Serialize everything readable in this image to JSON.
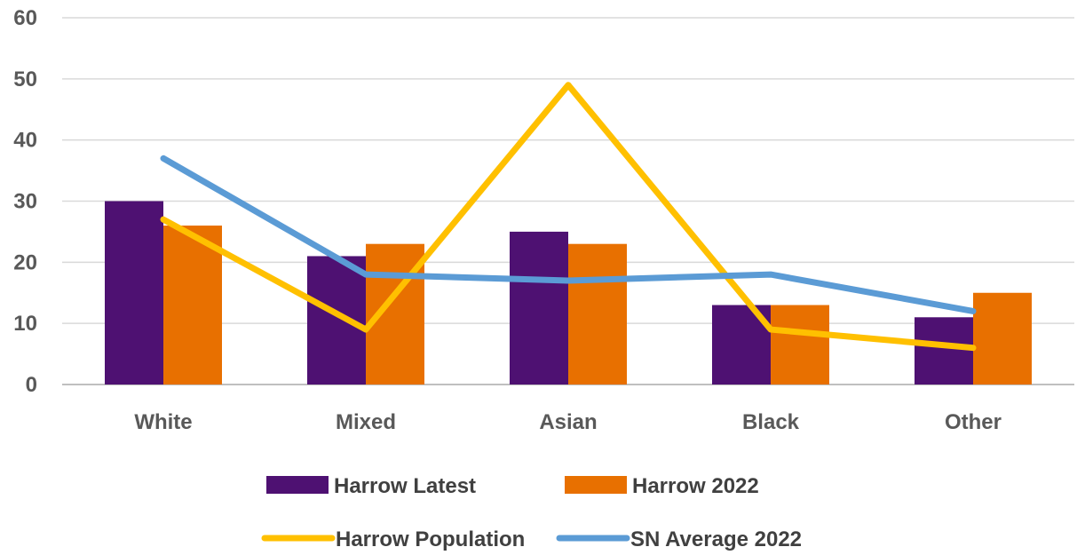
{
  "chart_data": {
    "type": "bar",
    "title": "",
    "xlabel": "",
    "ylabel": "",
    "categories": [
      "White",
      "Mixed",
      "Asian",
      "Black",
      "Other"
    ],
    "ylim": [
      0,
      60
    ],
    "yticks": [
      "0",
      "10",
      "20",
      "30",
      "40",
      "50",
      "60"
    ],
    "grid": true,
    "legend_position": "bottom",
    "series": [
      {
        "name": "Harrow Latest",
        "kind": "bar",
        "color": "#4E1172",
        "values": [
          30,
          21,
          25,
          13,
          11
        ]
      },
      {
        "name": "Harrow 2022",
        "kind": "bar",
        "color": "#E87000",
        "values": [
          26,
          23,
          23,
          13,
          15
        ]
      },
      {
        "name": "Harrow Population",
        "kind": "line",
        "color": "#FFC000",
        "values": [
          27,
          9,
          49,
          9,
          6
        ]
      },
      {
        "name": "SN Average 2022",
        "kind": "line",
        "color": "#5B9BD5",
        "values": [
          37,
          18,
          17,
          18,
          12
        ]
      }
    ]
  }
}
